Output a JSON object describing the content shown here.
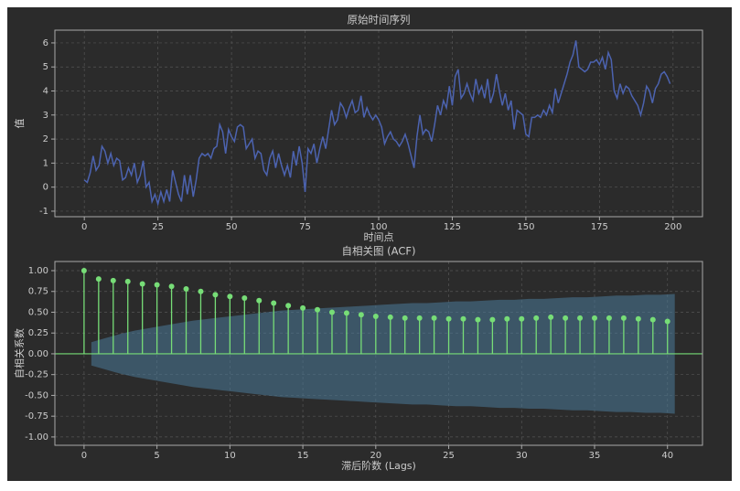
{
  "chart_data": [
    {
      "type": "line",
      "title": "原始时间序列",
      "xlabel": "时间点",
      "ylabel": "值",
      "x": [
        0,
        1,
        2,
        3,
        4,
        5,
        6,
        7,
        8,
        9,
        10,
        11,
        12,
        13,
        14,
        15,
        16,
        17,
        18,
        19,
        20,
        21,
        22,
        23,
        24,
        25,
        26,
        27,
        28,
        29,
        30,
        31,
        32,
        33,
        34,
        35,
        36,
        37,
        38,
        39,
        40,
        41,
        42,
        43,
        44,
        45,
        46,
        47,
        48,
        49,
        50,
        51,
        52,
        53,
        54,
        55,
        56,
        57,
        58,
        59,
        60,
        61,
        62,
        63,
        64,
        65,
        66,
        67,
        68,
        69,
        70,
        71,
        72,
        73,
        74,
        75,
        76,
        77,
        78,
        79,
        80,
        81,
        82,
        83,
        84,
        85,
        86,
        87,
        88,
        89,
        90,
        91,
        92,
        93,
        94,
        95,
        96,
        97,
        98,
        99,
        100,
        101,
        102,
        103,
        104,
        105,
        106,
        107,
        108,
        109,
        110,
        111,
        112,
        113,
        114,
        115,
        116,
        117,
        118,
        119,
        120,
        121,
        122,
        123,
        124,
        125,
        126,
        127,
        128,
        129,
        130,
        131,
        132,
        133,
        134,
        135,
        136,
        137,
        138,
        139,
        140,
        141,
        142,
        143,
        144,
        145,
        146,
        147,
        148,
        149,
        150,
        151,
        152,
        153,
        154,
        155,
        156,
        157,
        158,
        159,
        160,
        161,
        162,
        163,
        164,
        165,
        166,
        167,
        168,
        169,
        170,
        171,
        172,
        173,
        174,
        175,
        176,
        177,
        178,
        179,
        180,
        181,
        182,
        183,
        184,
        185,
        186,
        187,
        188,
        189,
        190,
        191,
        192,
        193,
        194,
        195,
        196,
        197,
        198,
        199
      ],
      "series": [
        {
          "color": "#4c63b0",
          "values": [
            0.3,
            0.2,
            0.6,
            1.3,
            0.7,
            0.9,
            1.7,
            1.5,
            1.0,
            1.4,
            0.9,
            1.2,
            1.1,
            0.3,
            0.4,
            0.8,
            0.5,
            1.0,
            0.2,
            0.5,
            1.1,
            0.0,
            0.2,
            -0.6,
            -0.3,
            -0.7,
            -0.2,
            -0.6,
            -0.1,
            -0.6,
            0.7,
            0.2,
            -0.3,
            -0.6,
            0.5,
            -0.3,
            0.5,
            -0.4,
            0.3,
            1.2,
            1.4,
            1.3,
            1.4,
            1.2,
            1.6,
            1.7,
            2.6,
            2.3,
            1.4,
            2.4,
            2.1,
            1.9,
            2.5,
            2.6,
            2.5,
            1.6,
            1.8,
            2.0,
            1.2,
            1.5,
            1.4,
            0.7,
            0.5,
            1.2,
            1.5,
            0.8,
            1.4,
            0.9,
            0.5,
            0.9,
            0.4,
            1.5,
            0.9,
            1.7,
            1.0,
            -0.2,
            1.6,
            1.4,
            1.8,
            1.0,
            1.6,
            2.1,
            1.6,
            2.4,
            3.2,
            2.6,
            2.8,
            3.5,
            3.3,
            2.9,
            3.3,
            3.6,
            3.1,
            3.2,
            3.8,
            2.9,
            3.3,
            3.0,
            2.8,
            3.0,
            2.8,
            2.5,
            1.8,
            2.1,
            2.3,
            2.0,
            1.9,
            1.7,
            1.9,
            2.2,
            1.8,
            1.3,
            0.8,
            2.1,
            3.0,
            2.2,
            2.4,
            2.3,
            1.9,
            2.6,
            3.4,
            3.0,
            3.6,
            3.3,
            4.2,
            3.4,
            4.6,
            4.9,
            3.7,
            3.9,
            4.3,
            3.9,
            3.6,
            4.5,
            3.9,
            4.2,
            3.7,
            4.5,
            3.5,
            3.9,
            4.7,
            4.0,
            3.4,
            3.9,
            3.2,
            3.6,
            2.4,
            3.2,
            3.1,
            3.0,
            2.2,
            2.1,
            2.9,
            2.9,
            3.0,
            2.9,
            3.2,
            3.0,
            3.4,
            3.1,
            4.1,
            3.5,
            3.9,
            4.3,
            4.7,
            5.2,
            5.5,
            6.1,
            5.0,
            4.9,
            4.8,
            4.9,
            5.2,
            5.2,
            5.3,
            5.1,
            5.4,
            4.9,
            5.6,
            5.3,
            4.0,
            3.7,
            4.3,
            3.9,
            4.2,
            4.1,
            3.8,
            3.6,
            3.4,
            3.0,
            3.5,
            4.2,
            4.0,
            3.5,
            4.1,
            4.3,
            4.7,
            4.8,
            4.6,
            4.3
          ]
        }
      ],
      "xlim": [
        -10,
        210
      ],
      "xticks": [
        0,
        25,
        50,
        75,
        100,
        125,
        150,
        175,
        200
      ],
      "ylim": [
        -1.23,
        6.53
      ],
      "yticks": [
        -1,
        0,
        1,
        2,
        3,
        4,
        5,
        6
      ],
      "grid": true
    },
    {
      "type": "stem",
      "title": "自相关图 (ACF)",
      "xlabel": "滞后阶数 (Lags)",
      "ylabel": "自相关系数",
      "x": [
        0,
        1,
        2,
        3,
        4,
        5,
        6,
        7,
        8,
        9,
        10,
        11,
        12,
        13,
        14,
        15,
        16,
        17,
        18,
        19,
        20,
        21,
        22,
        23,
        24,
        25,
        26,
        27,
        28,
        29,
        30,
        31,
        32,
        33,
        34,
        35,
        36,
        37,
        38,
        39,
        40
      ],
      "series": [
        {
          "color": "#77dd77",
          "values": [
            1.0,
            0.9,
            0.88,
            0.87,
            0.84,
            0.83,
            0.81,
            0.78,
            0.75,
            0.71,
            0.69,
            0.67,
            0.64,
            0.61,
            0.58,
            0.55,
            0.53,
            0.5,
            0.49,
            0.47,
            0.45,
            0.44,
            0.43,
            0.43,
            0.43,
            0.42,
            0.42,
            0.41,
            0.41,
            0.42,
            0.42,
            0.43,
            0.44,
            0.43,
            0.43,
            0.43,
            0.43,
            0.43,
            0.42,
            0.41,
            0.39
          ]
        }
      ],
      "band": {
        "color": "#4a7a99",
        "x": [
          0.5,
          1.5,
          2.5,
          3.5,
          4.5,
          5.5,
          6.5,
          7.5,
          8.5,
          9.5,
          10.5,
          11.5,
          12.5,
          13.5,
          14.5,
          15.5,
          16.5,
          17.5,
          18.5,
          19.5,
          20.5,
          21.5,
          22.5,
          23.5,
          24.5,
          25.5,
          26.5,
          27.5,
          28.5,
          29.5,
          30.5,
          31.5,
          32.5,
          33.5,
          34.5,
          35.5,
          36.5,
          37.5,
          38.5,
          39.5,
          40.5
        ],
        "upper": [
          0.14,
          0.19,
          0.24,
          0.28,
          0.31,
          0.34,
          0.37,
          0.4,
          0.42,
          0.44,
          0.46,
          0.48,
          0.5,
          0.52,
          0.53,
          0.54,
          0.55,
          0.56,
          0.57,
          0.58,
          0.59,
          0.6,
          0.61,
          0.61,
          0.62,
          0.63,
          0.63,
          0.64,
          0.65,
          0.65,
          0.66,
          0.66,
          0.67,
          0.68,
          0.68,
          0.69,
          0.7,
          0.7,
          0.71,
          0.71,
          0.72
        ],
        "lower": [
          -0.14,
          -0.19,
          -0.24,
          -0.28,
          -0.31,
          -0.34,
          -0.37,
          -0.4,
          -0.42,
          -0.44,
          -0.46,
          -0.48,
          -0.5,
          -0.52,
          -0.53,
          -0.54,
          -0.55,
          -0.56,
          -0.57,
          -0.58,
          -0.59,
          -0.6,
          -0.61,
          -0.61,
          -0.62,
          -0.63,
          -0.63,
          -0.64,
          -0.65,
          -0.65,
          -0.66,
          -0.66,
          -0.67,
          -0.68,
          -0.68,
          -0.69,
          -0.7,
          -0.7,
          -0.71,
          -0.71,
          -0.72
        ]
      },
      "xlim": [
        -2,
        42.4
      ],
      "xticks": [
        0,
        5,
        10,
        15,
        20,
        25,
        30,
        35,
        40
      ],
      "ylim": [
        -1.1,
        1.11
      ],
      "yticks": [
        {
          "value": -1,
          "label": "-1.00"
        },
        {
          "value": -0.75,
          "label": "-0.75"
        },
        {
          "value": -0.5,
          "label": "-0.50"
        },
        {
          "value": -0.25,
          "label": "-0.25"
        },
        {
          "value": 0,
          "label": "0.00"
        },
        {
          "value": 0.25,
          "label": "0.25"
        },
        {
          "value": 0.5,
          "label": "0.50"
        },
        {
          "value": 0.75,
          "label": "0.75"
        },
        {
          "value": 1,
          "label": "1.00"
        }
      ],
      "grid": true
    }
  ]
}
